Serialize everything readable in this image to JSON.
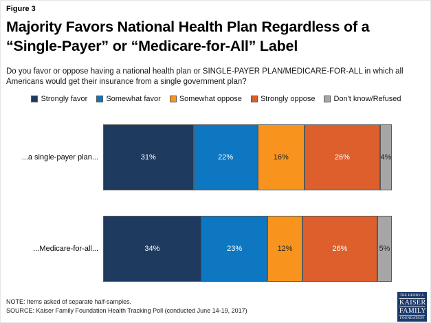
{
  "figure_label": "Figure 3",
  "title": "Majority Favors National Health Plan Regardless of a “Single-Payer” or “Medicare-for-All” Label",
  "question": "Do you favor or oppose having a national health plan or SINGLE-PAYER PLAN/MEDICARE-FOR-ALL in which all Americans would get their insurance from a single government plan?",
  "chart_data": {
    "type": "bar",
    "orientation": "horizontal_stacked",
    "title": "Majority Favors National Health Plan Regardless of a “Single-Payer” or “Medicare-for-All” Label",
    "categories": [
      "...a single-payer plan...",
      "...Medicare-for-all..."
    ],
    "series": [
      {
        "name": "Strongly favor",
        "color": "#1e3a5f",
        "text_color": "#ffffff",
        "values": [
          31,
          34
        ]
      },
      {
        "name": "Somewhat favor",
        "color": "#0e77c2",
        "text_color": "#ffffff",
        "values": [
          22,
          23
        ]
      },
      {
        "name": "Somewhat oppose",
        "color": "#f8941d",
        "text_color": "#262626",
        "values": [
          16,
          12
        ]
      },
      {
        "name": "Strongly oppose",
        "color": "#dd5f2b",
        "text_color": "#ffffff",
        "values": [
          26,
          26
        ]
      },
      {
        "name": "Don't know/Refused",
        "color": "#a6a6a6",
        "text_color": "#262626",
        "values": [
          4,
          5
        ]
      }
    ],
    "value_suffix": "%",
    "legend_position": "top",
    "grid": false,
    "xlabel": "",
    "ylabel": ""
  },
  "note": "NOTE: Items asked of separate half-samples.",
  "source": "SOURCE: Kaiser Family Foundation Health Tracking Poll (conducted June 14-19, 2017)",
  "logo": {
    "line1": "THE HENRY J.",
    "line2": "KAISER",
    "line3": "FAMILY",
    "line4": "FOUNDATION",
    "background": "#1b3a6b"
  }
}
